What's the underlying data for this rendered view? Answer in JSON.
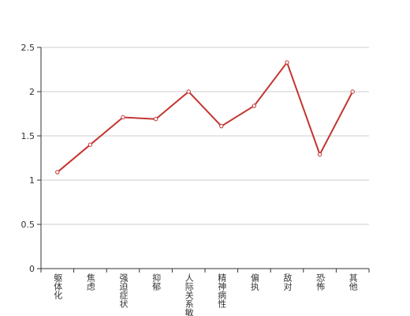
{
  "chart_data": {
    "type": "line",
    "categories": [
      "躯体化",
      "焦虑",
      "强迫症状",
      "抑郁",
      "人际关系敏感",
      "精神病性",
      "偏执",
      "敌对",
      "恐怖",
      "其他"
    ],
    "values": [
      1.09,
      1.4,
      1.71,
      1.69,
      2.0,
      1.61,
      1.84,
      2.33,
      1.29,
      2.0
    ],
    "color": "#c23531",
    "ylim": [
      0,
      2.5
    ],
    "yticks": [
      0,
      0.5,
      1,
      1.5,
      2,
      2.5
    ],
    "grid": true
  }
}
